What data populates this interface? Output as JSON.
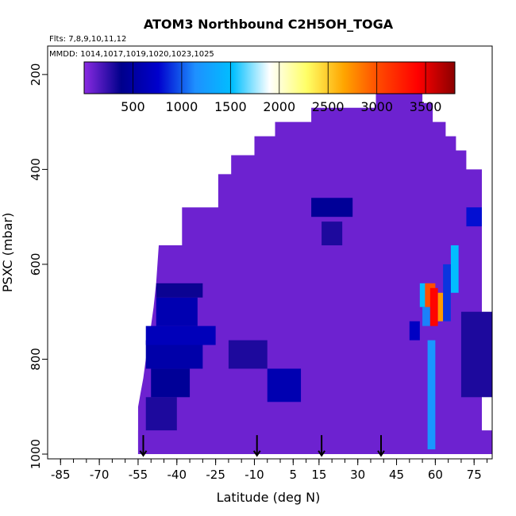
{
  "chart_data": {
    "type": "heatmap",
    "title": "ATOM3 Northbound C2H5OH_TOGA",
    "flights_label": "Flts: 7,8,9,10,11,12",
    "dates_label": "MMDD: 1014,1017,1019,1020,1023,1025",
    "xlabel": "Latitude (deg N)",
    "ylabel": "PSXC (mbar)",
    "xlim": [
      -90,
      82
    ],
    "ylim": [
      1010,
      140
    ],
    "x_ticks": [
      "-85",
      "-70",
      "-55",
      "-40",
      "-25",
      "-10",
      "5",
      "15",
      "30",
      "45",
      "60",
      "75"
    ],
    "y_ticks": [
      "200",
      "400",
      "600",
      "800",
      "1000"
    ],
    "colorbar": {
      "range": [
        0,
        3800
      ],
      "tick_labels": [
        "500",
        "1000",
        "1500",
        "2000",
        "2500",
        "3000",
        "3500"
      ],
      "colors": [
        "#8a2be2",
        "#00008b",
        "#0000cd",
        "#1e90ff",
        "#00bfff",
        "#ffffff",
        "#ffff66",
        "#ffa500",
        "#ff4500",
        "#ff0000",
        "#8b0000"
      ]
    },
    "flight_arrows_lat": [
      -53,
      -9,
      16,
      39
    ],
    "background_value": 80,
    "cells": [
      {
        "lat": [
          -55,
          82
        ],
        "p": [
          950,
          1000
        ],
        "v": 80
      },
      {
        "lat": [
          -52,
          -40
        ],
        "p": [
          880,
          950
        ],
        "v": 300
      },
      {
        "lat": [
          -50,
          -35
        ],
        "p": [
          820,
          880
        ],
        "v": 450
      },
      {
        "lat": [
          -52,
          -30
        ],
        "p": [
          760,
          820
        ],
        "v": 550
      },
      {
        "lat": [
          -52,
          -25
        ],
        "p": [
          730,
          770
        ],
        "v": 650
      },
      {
        "lat": [
          -48,
          -32
        ],
        "p": [
          670,
          730
        ],
        "v": 600
      },
      {
        "lat": [
          -48,
          -30
        ],
        "p": [
          640,
          670
        ],
        "v": 350
      },
      {
        "lat": [
          -5,
          8
        ],
        "p": [
          820,
          890
        ],
        "v": 600
      },
      {
        "lat": [
          -20,
          -5
        ],
        "p": [
          760,
          820
        ],
        "v": 300
      },
      {
        "lat": [
          12,
          28
        ],
        "p": [
          460,
          500
        ],
        "v": 450
      },
      {
        "lat": [
          16,
          24
        ],
        "p": [
          510,
          560
        ],
        "v": 300
      },
      {
        "lat": [
          54,
          58
        ],
        "p": [
          640,
          690
        ],
        "v": 1500
      },
      {
        "lat": [
          55,
          58
        ],
        "p": [
          690,
          730
        ],
        "v": 1100
      },
      {
        "lat": [
          56,
          60
        ],
        "p": [
          640,
          690
        ],
        "v": 3000
      },
      {
        "lat": [
          58,
          61
        ],
        "p": [
          650,
          730
        ],
        "v": 3400
      },
      {
        "lat": [
          61,
          63
        ],
        "p": [
          660,
          720
        ],
        "v": 2700
      },
      {
        "lat": [
          57,
          60
        ],
        "p": [
          760,
          990
        ],
        "v": 1200
      },
      {
        "lat": [
          66,
          69
        ],
        "p": [
          560,
          660
        ],
        "v": 1500
      },
      {
        "lat": [
          63,
          66
        ],
        "p": [
          600,
          720
        ],
        "v": 900
      },
      {
        "lat": [
          72,
          78
        ],
        "p": [
          480,
          520
        ],
        "v": 800
      },
      {
        "lat": [
          50,
          54
        ],
        "p": [
          720,
          760
        ],
        "v": 700
      },
      {
        "lat": [
          70,
          82
        ],
        "p": [
          700,
          880
        ],
        "v": 300
      }
    ]
  }
}
